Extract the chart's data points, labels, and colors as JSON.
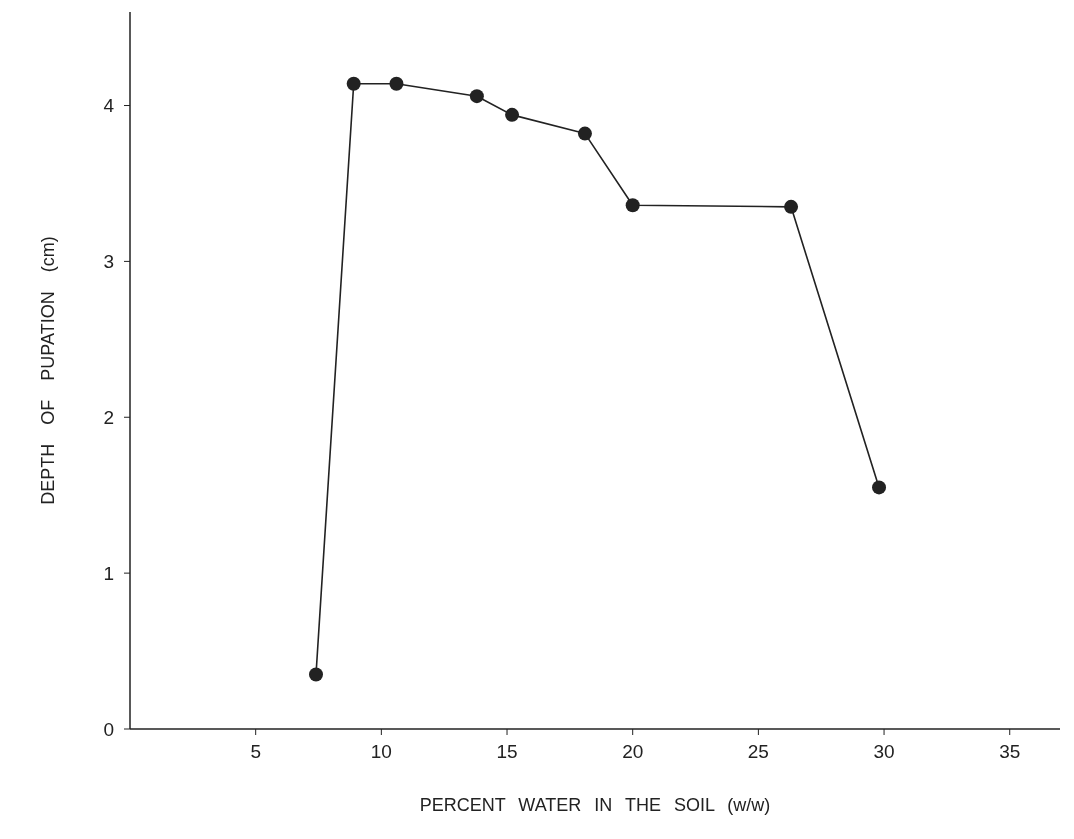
{
  "chart_data": {
    "type": "line",
    "xlabel": "PERCENT WATER IN THE SOIL (w/w)",
    "ylabel": "DEPTH OF PUPATION (cm)",
    "x": [
      7.4,
      8.9,
      10.6,
      13.8,
      15.2,
      18.1,
      20.0,
      26.3,
      29.8
    ],
    "series": [
      {
        "color": "#222222",
        "values": [
          0.35,
          4.14,
          4.14,
          4.06,
          3.94,
          3.82,
          3.36,
          3.35,
          1.55
        ]
      }
    ],
    "xlim": [
      0,
      37
    ],
    "xticks": [
      5,
      10,
      15,
      20,
      25,
      30,
      35
    ],
    "ylim": [
      0,
      4.6
    ],
    "yticks": [
      0,
      1,
      2,
      3,
      4
    ],
    "grid": false,
    "marker": "circle",
    "line_style": "solid"
  }
}
